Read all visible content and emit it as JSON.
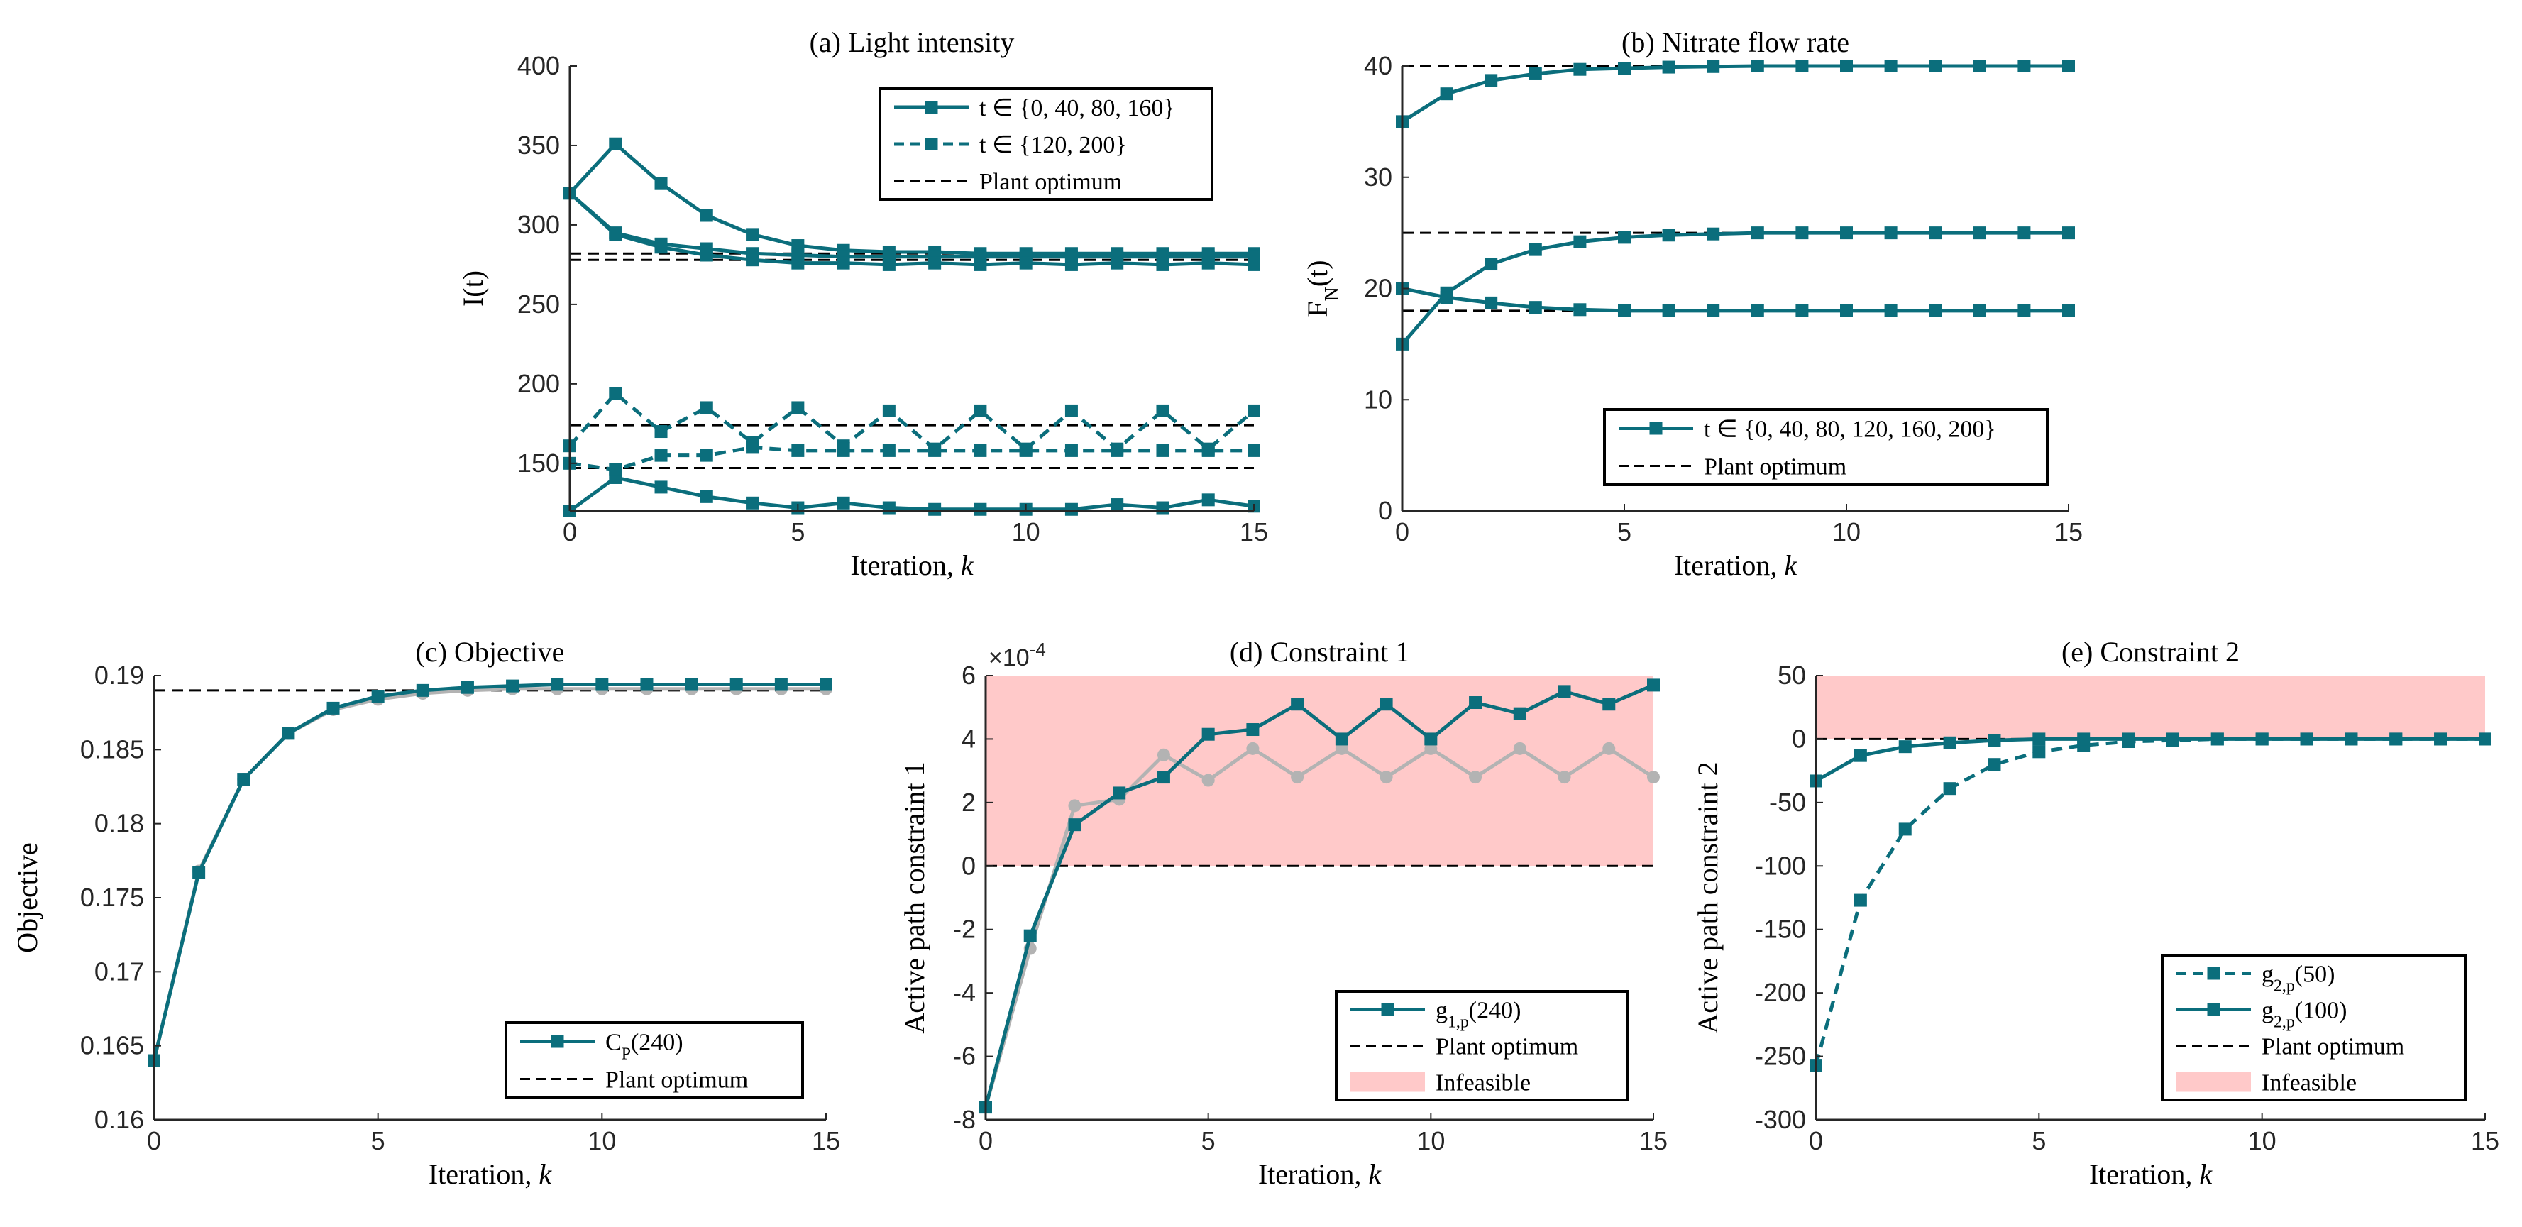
{
  "colors": {
    "teal": "#0b6e7c",
    "grey": "#b3b3b3",
    "infeasible": "#ffc9c9",
    "optimum": "#000000"
  },
  "chart_data": [
    {
      "id": "a",
      "type": "line",
      "title": "(a) Light intensity",
      "xlabel": "Iteration, k",
      "ylabel": "I(t)",
      "xlim": [
        0,
        15
      ],
      "ylim": [
        120,
        400
      ],
      "xticks": [
        0,
        5,
        10,
        15
      ],
      "yticks": [
        150,
        200,
        250,
        300,
        350,
        400
      ],
      "legend": {
        "placement": "top-right",
        "entries": [
          {
            "label": "t ∈ {0, 40, 80, 160}",
            "style": "solid-marker"
          },
          {
            "label": "t ∈ {120, 200}",
            "style": "dashed-marker"
          },
          {
            "label": "Plant optimum",
            "style": "dashed-black"
          }
        ]
      },
      "optimum_lines": [
        282,
        278,
        174,
        147,
        120
      ],
      "series": [
        {
          "name": "I(0)",
          "style": "solid",
          "values": [
            320,
            351,
            326,
            306,
            294,
            287,
            284,
            283,
            283,
            282,
            282,
            282,
            282,
            282,
            282,
            282
          ]
        },
        {
          "name": "I(40)",
          "style": "solid",
          "values": [
            320,
            295,
            288,
            285,
            282,
            281,
            280,
            280,
            280,
            280,
            280,
            280,
            280,
            280,
            280,
            280
          ]
        },
        {
          "name": "I(80)",
          "style": "solid",
          "values": [
            320,
            294,
            286,
            281,
            278,
            276,
            276,
            275,
            276,
            275,
            276,
            275,
            276,
            275,
            276,
            275
          ]
        },
        {
          "name": "I(160)",
          "style": "solid",
          "values": [
            120,
            141,
            135,
            129,
            125,
            122,
            125,
            122,
            121,
            121,
            121,
            121,
            124,
            122,
            127,
            123
          ]
        },
        {
          "name": "I(120)",
          "style": "dashed",
          "values": [
            161,
            194,
            170,
            185,
            163,
            185,
            161,
            183,
            159,
            183,
            159,
            183,
            159,
            183,
            159,
            183
          ]
        },
        {
          "name": "I(200)",
          "style": "dashed",
          "values": [
            150,
            146,
            155,
            155,
            160,
            158,
            158,
            158,
            158,
            158,
            158,
            158,
            158,
            158,
            158,
            158
          ]
        }
      ]
    },
    {
      "id": "b",
      "type": "line",
      "title": "(b) Nitrate flow rate",
      "xlabel": "Iteration, k",
      "ylabel": "F_N(t)",
      "xlim": [
        0,
        15
      ],
      "ylim": [
        0,
        40
      ],
      "xticks": [
        0,
        5,
        10,
        15
      ],
      "yticks": [
        0,
        10,
        20,
        30,
        40
      ],
      "legend": {
        "placement": "bottom-right",
        "entries": [
          {
            "label": "t ∈ {0, 40, 80, 120, 160, 200}",
            "style": "solid-marker"
          },
          {
            "label": "Plant optimum",
            "style": "dashed-black"
          }
        ]
      },
      "optimum_lines": [
        40,
        25,
        18
      ],
      "series": [
        {
          "name": "upper",
          "style": "solid",
          "values": [
            35,
            37.5,
            38.7,
            39.3,
            39.7,
            39.8,
            39.9,
            39.95,
            40,
            40,
            40,
            40,
            40,
            40,
            40,
            40
          ]
        },
        {
          "name": "middle",
          "style": "solid",
          "values": [
            15,
            19.6,
            22.2,
            23.5,
            24.2,
            24.6,
            24.8,
            24.9,
            25,
            25,
            25,
            25,
            25,
            25,
            25,
            25
          ]
        },
        {
          "name": "lower",
          "style": "solid",
          "values": [
            20,
            19.2,
            18.7,
            18.3,
            18.1,
            18,
            18,
            18,
            18,
            18,
            18,
            18,
            18,
            18,
            18,
            18
          ]
        }
      ]
    },
    {
      "id": "c",
      "type": "line",
      "title": "(c) Objective",
      "xlabel": "Iteration, k",
      "ylabel": "Objective",
      "xlim": [
        0,
        15
      ],
      "ylim": [
        0.16,
        0.19
      ],
      "xticks": [
        0,
        5,
        10,
        15
      ],
      "yticks": [
        0.16,
        0.165,
        0.17,
        0.175,
        0.18,
        0.185,
        0.19
      ],
      "ytick_labels": [
        "0.16",
        "0.165",
        "0.17",
        "0.175",
        "0.18",
        "0.185",
        "0.19"
      ],
      "legend": {
        "placement": "bottom-right",
        "entries": [
          {
            "label": "C_P(240)",
            "style": "solid-marker"
          },
          {
            "label": "Plant optimum",
            "style": "dashed-black"
          }
        ]
      },
      "optimum_lines": [
        0.189
      ],
      "series": [
        {
          "name": "grey",
          "style": "grey",
          "values": [
            0.164,
            0.1768,
            0.183,
            0.1861,
            0.1877,
            0.1884,
            0.1888,
            0.189,
            0.1891,
            0.1891,
            0.1891,
            0.1891,
            0.1891,
            0.1891,
            0.1891,
            0.1891
          ]
        },
        {
          "name": "C_P(240)",
          "style": "solid",
          "values": [
            0.164,
            0.1767,
            0.183,
            0.1861,
            0.1878,
            0.1886,
            0.189,
            0.1892,
            0.1893,
            0.1894,
            0.1894,
            0.1894,
            0.1894,
            0.1894,
            0.1894,
            0.1894
          ]
        }
      ]
    },
    {
      "id": "d",
      "type": "line",
      "title": "(d) Constraint 1",
      "xlabel": "Iteration, k",
      "ylabel": "Active path constraint 1",
      "xlim": [
        0,
        15
      ],
      "ylim": [
        -8,
        6
      ],
      "scale_label": "×10",
      "scale_exp": "-4",
      "xticks": [
        0,
        5,
        10,
        15
      ],
      "yticks": [
        -8,
        -6,
        -4,
        -2,
        0,
        2,
        4,
        6
      ],
      "infeasible_range": [
        0,
        6
      ],
      "legend": {
        "placement": "bottom-right",
        "entries": [
          {
            "label": "g_{1,p}(240)",
            "style": "solid-marker"
          },
          {
            "label": "Plant optimum",
            "style": "dashed-black"
          },
          {
            "label": "Infeasible",
            "style": "patch"
          }
        ]
      },
      "optimum_lines": [
        0
      ],
      "series": [
        {
          "name": "grey",
          "style": "grey",
          "values": [
            -7.6,
            -2.6,
            1.9,
            2.1,
            3.5,
            2.7,
            3.7,
            2.8,
            3.7,
            2.8,
            3.7,
            2.8,
            3.7,
            2.8,
            3.7,
            2.8
          ]
        },
        {
          "name": "g_{1,p}(240)",
          "style": "solid",
          "values": [
            -7.6,
            -2.2,
            1.3,
            2.3,
            2.8,
            4.15,
            4.3,
            5.1,
            4.0,
            5.1,
            4.0,
            5.15,
            4.8,
            5.5,
            5.1,
            5.7
          ]
        }
      ]
    },
    {
      "id": "e",
      "type": "line",
      "title": "(e) Constraint 2",
      "xlabel": "Iteration, k",
      "ylabel": "Active path constraint 2",
      "xlim": [
        0,
        15
      ],
      "ylim": [
        -300,
        50
      ],
      "xticks": [
        0,
        5,
        10,
        15
      ],
      "yticks": [
        -300,
        -250,
        -200,
        -150,
        -100,
        -50,
        0,
        50
      ],
      "infeasible_range": [
        0,
        50
      ],
      "legend": {
        "placement": "bottom-right",
        "entries": [
          {
            "label": "g_{2,p}(50)",
            "style": "dashed-marker"
          },
          {
            "label": "g_{2,p}(100)",
            "style": "solid-marker"
          },
          {
            "label": "Plant optimum",
            "style": "dashed-black"
          },
          {
            "label": "Infeasible",
            "style": "patch"
          }
        ]
      },
      "optimum_lines": [
        0
      ],
      "series": [
        {
          "name": "g_{2,p}(50)",
          "style": "dashed",
          "values": [
            -257,
            -127,
            -71,
            -39,
            -20,
            -10,
            -5,
            -2,
            -1,
            0,
            0,
            0,
            0,
            0,
            0,
            0
          ]
        },
        {
          "name": "g_{2,p}(100)",
          "style": "solid",
          "values": [
            -33,
            -13,
            -6,
            -3,
            -1,
            0,
            0,
            0,
            0,
            0,
            0,
            0,
            0,
            0,
            0,
            0
          ]
        }
      ]
    }
  ]
}
